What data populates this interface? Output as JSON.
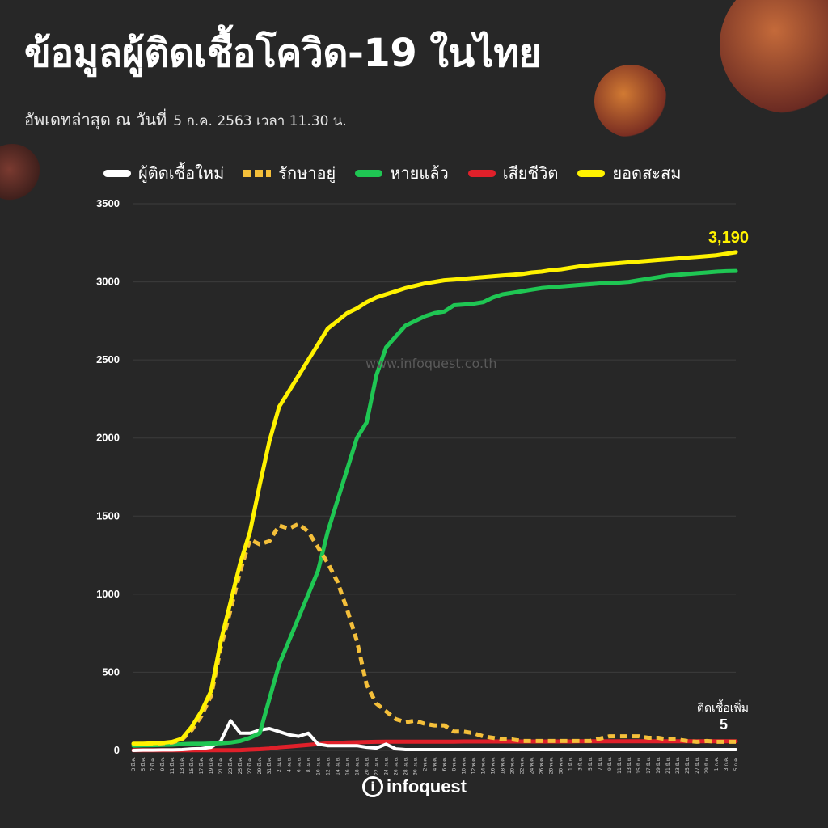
{
  "header": {
    "title": "ข้อมูลผู้ติดเชื้อโควิด-19 ในไทย",
    "updated_label": "อัพเดทล่าสุด ณ วันที่",
    "updated_value": "5 ก.ค. 2563 เวลา 11.30 น."
  },
  "watermark": "www.infoquest.co.th",
  "logo": {
    "mark": "i",
    "text": "infoquest"
  },
  "colors": {
    "background": "#272727",
    "new_cases": "#ffffff",
    "active": "#f4bf3a",
    "recovered": "#1fc653",
    "deaths": "#e0202a",
    "cumulative": "#fff200"
  },
  "chart_data": {
    "type": "line",
    "ylim": [
      0,
      3500
    ],
    "y_ticks": [
      "0",
      "500",
      "1000",
      "1500",
      "2000",
      "2500",
      "3000",
      "3500"
    ],
    "x_ticks": [
      "3 มี.ค.",
      "5 มี.ค.",
      "7 มี.ค.",
      "9 มี.ค.",
      "11 มี.ค.",
      "13 มี.ค.",
      "15 มี.ค.",
      "17 มี.ค.",
      "19 มี.ค.",
      "21 มี.ค.",
      "23 มี.ค.",
      "25 มี.ค.",
      "27 มี.ค.",
      "29 มี.ค.",
      "31 มี.ค.",
      "2 เม.ย.",
      "4 เม.ย.",
      "6 เม.ย.",
      "8 เม.ย.",
      "10 เม.ย.",
      "12 เม.ย.",
      "14 เม.ย.",
      "16 เม.ย.",
      "18 เม.ย.",
      "20 เม.ย.",
      "22 เม.ย.",
      "24 เม.ย.",
      "26 เม.ย.",
      "28 เม.ย.",
      "30 เม.ย.",
      "2 พ.ค.",
      "4 พ.ค.",
      "6 พ.ค.",
      "8 พ.ค.",
      "10 พ.ค.",
      "12 พ.ค.",
      "14 พ.ค.",
      "16 พ.ค.",
      "18 พ.ค.",
      "20 พ.ค.",
      "22 พ.ค.",
      "24 พ.ค.",
      "26 พ.ค.",
      "28 พ.ค.",
      "30 พ.ค.",
      "1 มิ.ย.",
      "3 มิ.ย.",
      "5 มิ.ย.",
      "7 มิ.ย.",
      "9 มิ.ย.",
      "11 มิ.ย.",
      "13 มิ.ย.",
      "15 มิ.ย.",
      "17 มิ.ย.",
      "19 มิ.ย.",
      "21 มิ.ย.",
      "23 มิ.ย.",
      "25 มิ.ย.",
      "27 มิ.ย.",
      "29 มิ.ย.",
      "1 ก.ค.",
      "3 ก.ค.",
      "5 ก.ค."
    ],
    "series": [
      {
        "name": "ผู้ติดเชื้อใหม่",
        "key": "new_cases",
        "style": "solid",
        "values": [
          0,
          2,
          2,
          3,
          3,
          5,
          10,
          12,
          20,
          60,
          190,
          110,
          110,
          130,
          140,
          120,
          100,
          90,
          110,
          40,
          30,
          30,
          30,
          30,
          20,
          15,
          40,
          10,
          5,
          5,
          5,
          5,
          5,
          5,
          5,
          5,
          5,
          5,
          5,
          5,
          5,
          5,
          5,
          5,
          5,
          5,
          5,
          5,
          5,
          5,
          5,
          5,
          5,
          5,
          5,
          5,
          5,
          5,
          5,
          5,
          5,
          5,
          5
        ]
      },
      {
        "name": "รักษาอยู่",
        "key": "active",
        "style": "dashed",
        "values": [
          40,
          40,
          40,
          45,
          50,
          70,
          130,
          220,
          350,
          660,
          900,
          1150,
          1350,
          1320,
          1340,
          1440,
          1420,
          1450,
          1400,
          1300,
          1200,
          1080,
          900,
          700,
          420,
          300,
          250,
          200,
          180,
          190,
          170,
          160,
          160,
          120,
          120,
          110,
          90,
          80,
          70,
          70,
          60,
          60,
          60,
          60,
          60,
          60,
          60,
          60,
          75,
          90,
          90,
          90,
          90,
          80,
          80,
          70,
          70,
          60,
          55,
          60,
          55,
          55,
          55
        ]
      },
      {
        "name": "หายแล้ว",
        "key": "recovered",
        "style": "solid",
        "values": [
          30,
          32,
          33,
          35,
          36,
          40,
          42,
          42,
          44,
          45,
          50,
          60,
          80,
          110,
          330,
          550,
          700,
          850,
          1000,
          1150,
          1400,
          1600,
          1800,
          2000,
          2100,
          2400,
          2580,
          2650,
          2720,
          2750,
          2780,
          2800,
          2810,
          2850,
          2855,
          2860,
          2870,
          2900,
          2920,
          2930,
          2940,
          2950,
          2960,
          2965,
          2970,
          2975,
          2980,
          2985,
          2990,
          2990,
          2995,
          3000,
          3010,
          3020,
          3030,
          3040,
          3045,
          3050,
          3055,
          3060,
          3065,
          3068,
          3070
        ]
      },
      {
        "name": "เสียชีวิต",
        "key": "deaths",
        "style": "solid",
        "values": [
          1,
          1,
          1,
          1,
          1,
          1,
          1,
          1,
          1,
          1,
          1,
          2,
          5,
          8,
          12,
          20,
          25,
          30,
          35,
          40,
          45,
          47,
          50,
          52,
          54,
          55,
          56,
          56,
          56,
          56,
          56,
          56,
          56,
          56,
          57,
          57,
          57,
          57,
          57,
          57,
          57,
          57,
          57,
          57,
          57,
          57,
          58,
          58,
          58,
          58,
          58,
          58,
          58,
          58,
          58,
          58,
          58,
          58,
          58,
          58,
          58,
          58,
          58
        ]
      },
      {
        "name": "ยอดสะสม",
        "key": "cumulative",
        "style": "solid",
        "values": [
          43,
          43,
          45,
          48,
          55,
          75,
          150,
          250,
          380,
          700,
          950,
          1200,
          1400,
          1700,
          1980,
          2200,
          2300,
          2400,
          2500,
          2600,
          2700,
          2750,
          2800,
          2830,
          2870,
          2900,
          2920,
          2940,
          2960,
          2975,
          2990,
          3000,
          3010,
          3015,
          3020,
          3025,
          3030,
          3035,
          3040,
          3045,
          3050,
          3060,
          3065,
          3075,
          3080,
          3090,
          3100,
          3105,
          3110,
          3115,
          3120,
          3125,
          3130,
          3135,
          3140,
          3145,
          3150,
          3155,
          3160,
          3165,
          3170,
          3180,
          3190
        ]
      }
    ],
    "annotations": [
      {
        "series": "cumulative",
        "text": "3,190"
      },
      {
        "series": "new_cases",
        "label": "ติดเชื้อเพิ่ม",
        "text": "5"
      }
    ]
  }
}
